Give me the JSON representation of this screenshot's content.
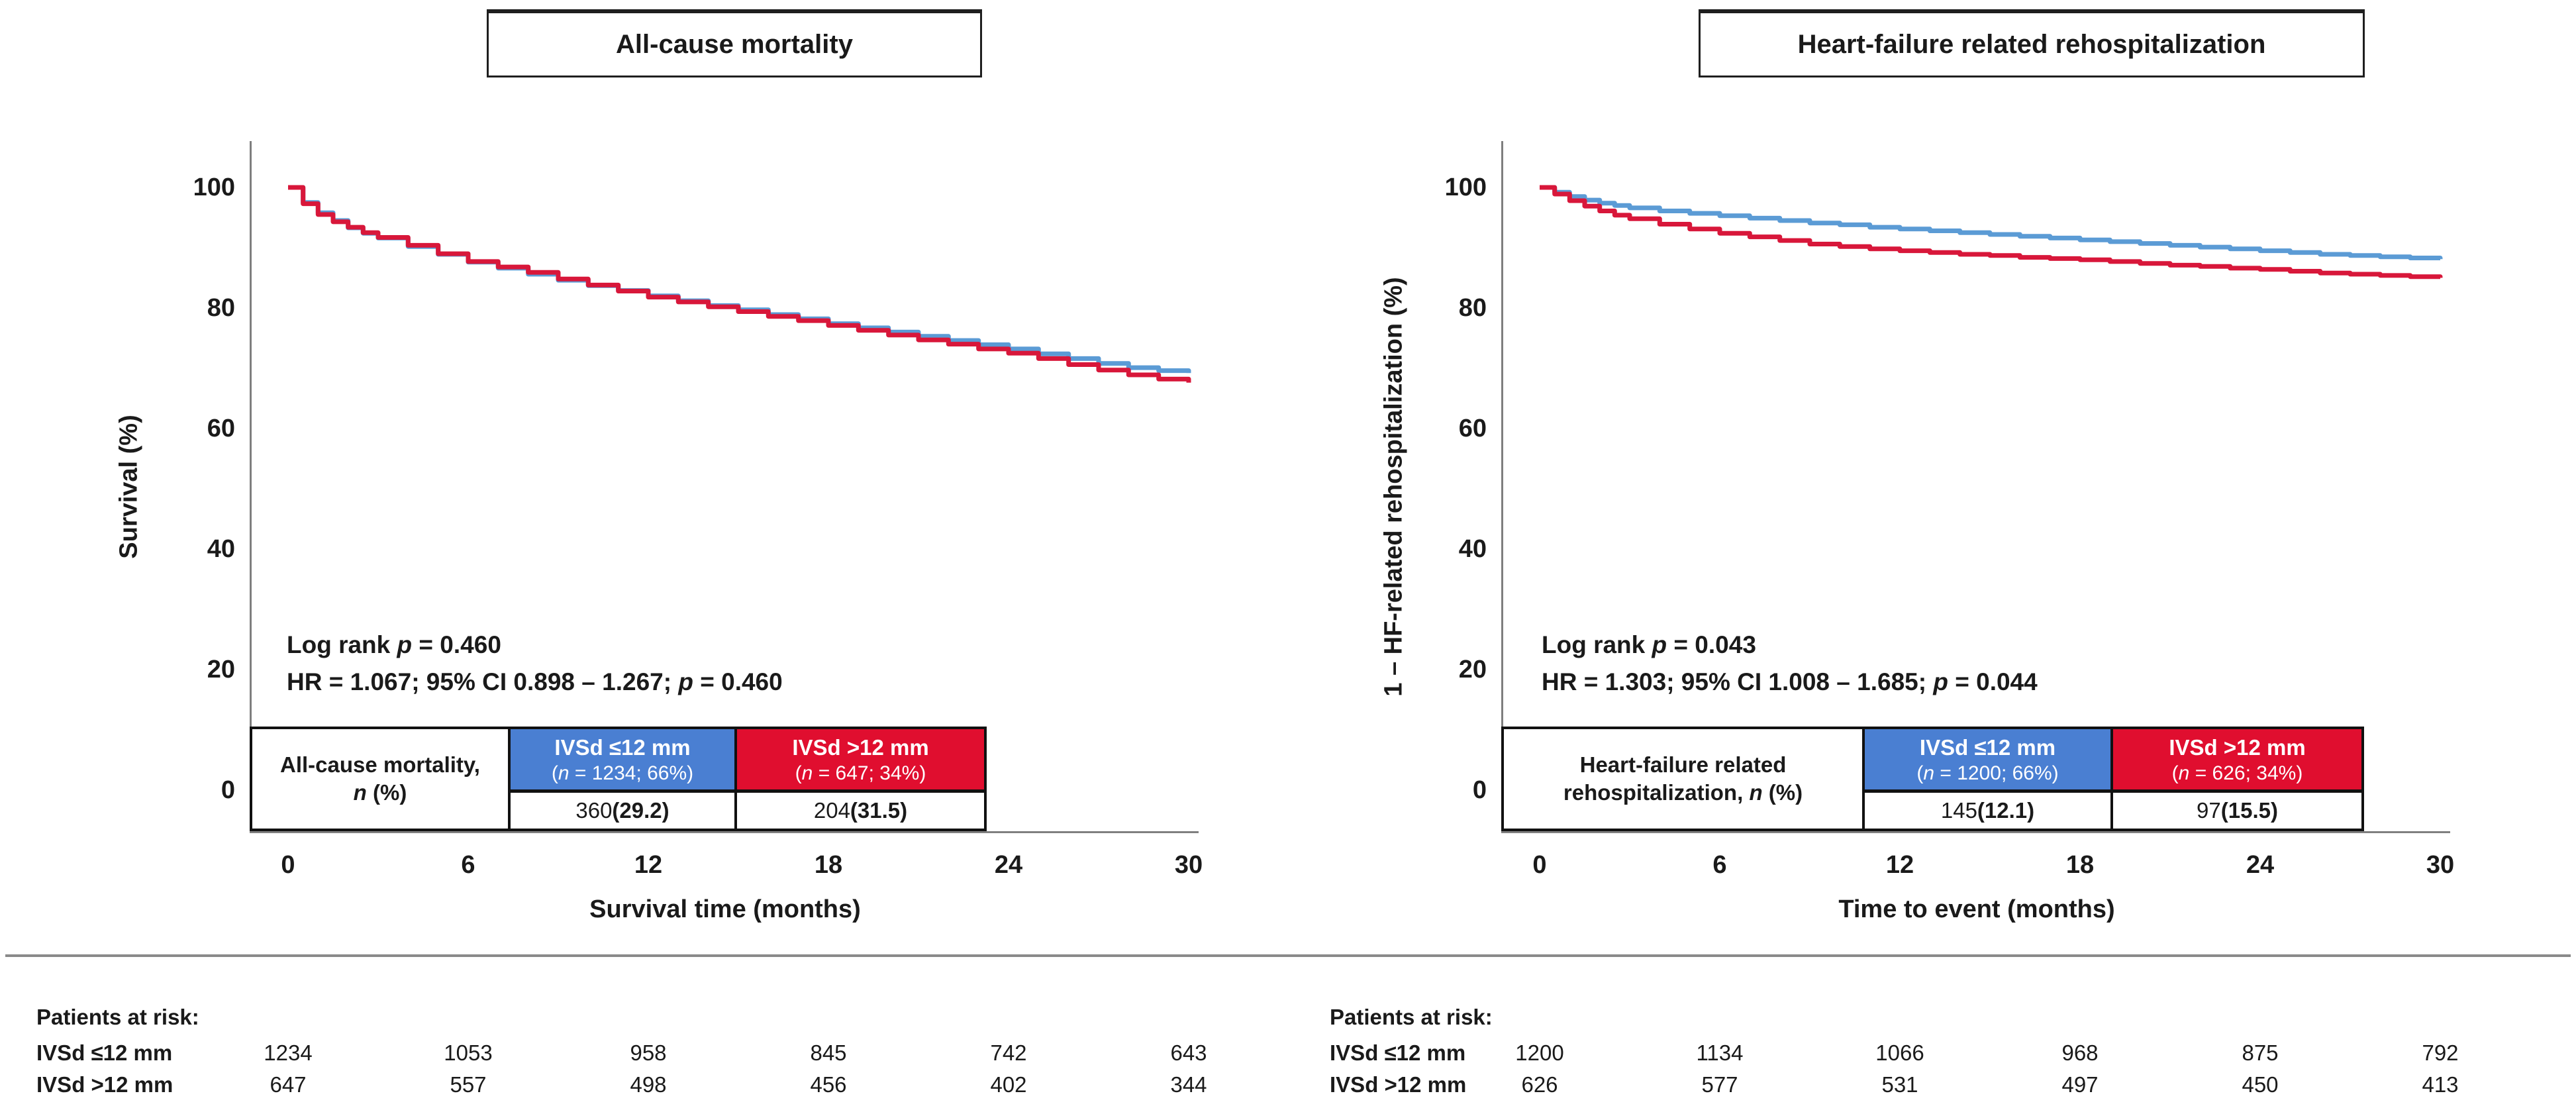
{
  "colors": {
    "header_blue": "#4a7fd2",
    "header_red": "#e00e2f",
    "curve_blue": "#5b9bd5",
    "curve_red": "#d8173a",
    "axis_gray": "#7f7f7f",
    "divider_gray": "#8a8a8a"
  },
  "panels": [
    {
      "title": "All-cause mortality",
      "y_label": "Survival (%)",
      "x_label": "Survival time (months)",
      "y_ticks": [
        "100",
        "80",
        "60",
        "40",
        "20",
        "0"
      ],
      "x_ticks": [
        "0",
        "6",
        "12",
        "18",
        "24",
        "30"
      ],
      "stats": {
        "logrank_pre": "Log rank ",
        "logrank_p": "p",
        "logrank_post": " = 0.460",
        "hr_pre": "HR = 1.067; 95% CI 0.898 – 1.267; ",
        "hr_p": "p",
        "hr_post": " = 0.460"
      },
      "table": {
        "label_pre": "All-cause mortality, ",
        "label_n": "n",
        "label_post": " (%)",
        "groups": [
          {
            "name": "IVSd ≤12 mm",
            "sub_open": "(",
            "sub_n": "n",
            "sub_rest": " = 1234; 66%)",
            "value_n": "360 ",
            "value_pct": "(29.2)"
          },
          {
            "name": "IVSd >12 mm",
            "sub_open": "(",
            "sub_n": "n",
            "sub_rest": " = 647; 34%)",
            "value_n": "204 ",
            "value_pct": "(31.5)"
          }
        ]
      },
      "risk": {
        "heading": "Patients at risk:",
        "rows": [
          {
            "label": "IVSd ≤12 mm",
            "values": [
              "1234",
              "1053",
              "958",
              "845",
              "742",
              "643"
            ]
          },
          {
            "label": "IVSd >12 mm",
            "values": [
              "647",
              "557",
              "498",
              "456",
              "402",
              "344"
            ]
          }
        ]
      }
    },
    {
      "title": "Heart-failure related rehospitalization",
      "y_label": "1 – HF-related rehospitalization (%)",
      "x_label": "Time to event (months)",
      "y_ticks": [
        "100",
        "80",
        "60",
        "40",
        "20",
        "0"
      ],
      "x_ticks": [
        "0",
        "6",
        "12",
        "18",
        "24",
        "30"
      ],
      "stats": {
        "logrank_pre": "Log rank ",
        "logrank_p": "p",
        "logrank_post": " = 0.043",
        "hr_pre": "HR = 1.303; 95% CI 1.008 – 1.685; ",
        "hr_p": "p",
        "hr_post": " = 0.044"
      },
      "table": {
        "label_pre": "Heart-failure related rehospitalization, ",
        "label_n": "n",
        "label_post": " (%)",
        "groups": [
          {
            "name": "IVSd ≤12 mm",
            "sub_open": "(",
            "sub_n": "n",
            "sub_rest": " = 1200; 66%)",
            "value_n": "145 ",
            "value_pct": "(12.1)"
          },
          {
            "name": "IVSd >12 mm",
            "sub_open": "(",
            "sub_n": "n",
            "sub_rest": " = 626; 34%)",
            "value_n": "97 ",
            "value_pct": "(15.5)"
          }
        ]
      },
      "risk": {
        "heading": "Patients at risk:",
        "rows": [
          {
            "label": "IVSd ≤12 mm",
            "values": [
              "1200",
              "1134",
              "1066",
              "968",
              "875",
              "792"
            ]
          },
          {
            "label": "IVSd >12 mm",
            "values": [
              "626",
              "577",
              "531",
              "497",
              "450",
              "413"
            ]
          }
        ]
      }
    }
  ],
  "chart_data": [
    {
      "type": "line",
      "subtype": "kaplan-meier-step",
      "title": "All-cause mortality",
      "xlabel": "Survival time (months)",
      "ylabel": "Survival (%)",
      "xlim": [
        0,
        30
      ],
      "ylim": [
        0,
        100
      ],
      "xticks": [
        0,
        6,
        12,
        18,
        24,
        30
      ],
      "yticks": [
        0,
        20,
        40,
        60,
        80,
        100
      ],
      "grid": false,
      "legend_position": "in-plot table",
      "x": [
        0,
        0.5,
        1,
        1.5,
        2,
        2.5,
        3,
        4,
        5,
        6,
        7,
        8,
        9,
        10,
        11,
        12,
        13,
        14,
        15,
        16,
        17,
        18,
        19,
        20,
        21,
        22,
        23,
        24,
        25,
        26,
        27,
        28,
        29,
        30
      ],
      "series": [
        {
          "name": "IVSd ≤12 mm",
          "color": "#5b9bd5",
          "values": [
            100,
            97.5,
            95.8,
            94.5,
            93.3,
            92.4,
            91.6,
            90.2,
            88.9,
            87.6,
            86.6,
            85.6,
            84.6,
            83.7,
            82.9,
            82.0,
            81.2,
            80.4,
            79.7,
            78.9,
            78.2,
            77.4,
            76.7,
            76.0,
            75.3,
            74.6,
            73.9,
            73.2,
            72.4,
            71.6,
            70.8,
            70.1,
            69.6,
            69.2
          ]
        },
        {
          "name": "IVSd >12 mm",
          "color": "#d8173a",
          "values": [
            100,
            97.3,
            95.5,
            94.3,
            93.4,
            92.5,
            91.7,
            90.4,
            89.0,
            87.7,
            86.8,
            85.9,
            84.8,
            83.8,
            82.8,
            81.8,
            81.0,
            80.2,
            79.4,
            78.6,
            77.9,
            77.1,
            76.3,
            75.5,
            74.7,
            74.0,
            73.2,
            72.5,
            71.6,
            70.6,
            69.7,
            68.9,
            68.2,
            67.6
          ]
        }
      ],
      "annotations": [
        "Log rank p = 0.460",
        "HR = 1.067; 95% CI 0.898 – 1.267; p = 0.460"
      ]
    },
    {
      "type": "line",
      "subtype": "kaplan-meier-step",
      "title": "Heart-failure related rehospitalization",
      "xlabel": "Time to event (months)",
      "ylabel": "1 – HF-related rehospitalization (%)",
      "xlim": [
        0,
        30
      ],
      "ylim": [
        0,
        100
      ],
      "xticks": [
        0,
        6,
        12,
        18,
        24,
        30
      ],
      "yticks": [
        0,
        20,
        40,
        60,
        80,
        100
      ],
      "grid": false,
      "legend_position": "in-plot table",
      "x": [
        0,
        0.5,
        1,
        1.5,
        2,
        2.5,
        3,
        4,
        5,
        6,
        7,
        8,
        9,
        10,
        11,
        12,
        13,
        14,
        15,
        16,
        17,
        18,
        19,
        20,
        21,
        22,
        23,
        24,
        25,
        26,
        27,
        28,
        29,
        30
      ],
      "series": [
        {
          "name": "IVSd ≤12 mm",
          "color": "#5b9bd5",
          "values": [
            100,
            99.2,
            98.5,
            97.9,
            97.4,
            97.0,
            96.6,
            96.1,
            95.7,
            95.3,
            94.9,
            94.5,
            94.1,
            93.8,
            93.4,
            93.1,
            92.8,
            92.5,
            92.2,
            91.9,
            91.6,
            91.3,
            91.0,
            90.7,
            90.4,
            90.1,
            89.8,
            89.5,
            89.2,
            88.9,
            88.7,
            88.5,
            88.3,
            88.1
          ]
        },
        {
          "name": "IVSd >12 mm",
          "color": "#d8173a",
          "values": [
            100,
            98.9,
            97.8,
            96.9,
            96.1,
            95.4,
            94.8,
            93.9,
            93.1,
            92.4,
            91.8,
            91.2,
            90.6,
            90.2,
            89.8,
            89.5,
            89.2,
            88.9,
            88.7,
            88.4,
            88.2,
            88.0,
            87.7,
            87.4,
            87.1,
            86.9,
            86.6,
            86.4,
            86.1,
            85.8,
            85.6,
            85.4,
            85.2,
            85.0
          ]
        }
      ],
      "annotations": [
        "Log rank p = 0.043",
        "HR = 1.303; 95% CI 1.008 – 1.685; p = 0.044"
      ]
    }
  ]
}
